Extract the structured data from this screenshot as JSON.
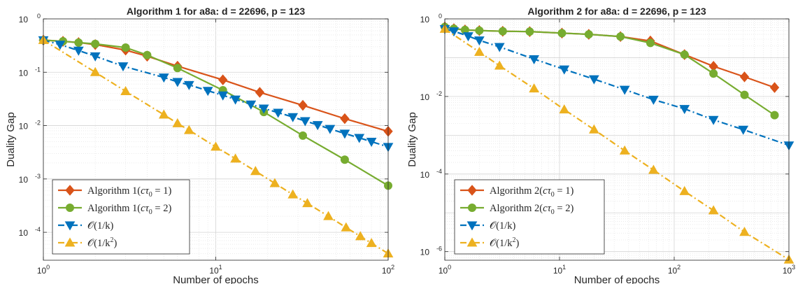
{
  "chart_data": [
    {
      "type": "line",
      "title": "Algorithm 1 for a8a: d = 22696, p = 123",
      "xlabel": "Number of epochs",
      "ylabel": "Duality Gap",
      "xscale": "log",
      "yscale": "log",
      "xlim": [
        1,
        100
      ],
      "ylim": [
        3e-05,
        1
      ],
      "xticks": [
        1,
        10,
        100
      ],
      "xtick_base": [
        "10",
        "10",
        "10"
      ],
      "xtick_exp": [
        "0",
        "1",
        "2"
      ],
      "yticks": [
        0.0001,
        0.001,
        0.01,
        0.1,
        1
      ],
      "ytick_base": [
        "10",
        "10",
        "10",
        "10",
        "10"
      ],
      "ytick_exp": [
        "-4",
        "-3",
        "-2",
        "-1",
        "0"
      ],
      "grid": true,
      "legend_position": "bottom-left",
      "series": [
        {
          "name": "Algorithm 1(cτ0 = 1)",
          "legend_main": "Algorithm 1(",
          "legend_c": "c",
          "legend_tau": "τ",
          "legend_sub": "0",
          "legend_tail": " = 1)",
          "color": "#D95319",
          "marker": "diamond",
          "linestyle": "solid",
          "x": [
            1,
            1.3,
            1.6,
            2,
            3,
            4,
            6,
            11,
            18,
            32,
            56,
            100
          ],
          "y": [
            0.4,
            0.38,
            0.36,
            0.33,
            0.26,
            0.2,
            0.13,
            0.072,
            0.042,
            0.024,
            0.0135,
            0.0078
          ]
        },
        {
          "name": "Algorithm 1(cτ0 = 2)",
          "legend_main": "Algorithm 1(",
          "legend_c": "c",
          "legend_tau": "τ",
          "legend_sub": "0",
          "legend_tail": " = 2)",
          "color": "#77AC30",
          "marker": "circle",
          "linestyle": "solid",
          "x": [
            1,
            1.3,
            1.6,
            2,
            3,
            4,
            6,
            11,
            19,
            32,
            56,
            100
          ],
          "y": [
            0.4,
            0.38,
            0.36,
            0.34,
            0.29,
            0.21,
            0.12,
            0.046,
            0.018,
            0.0065,
            0.0023,
            0.00075
          ]
        },
        {
          "name": "O(1/k)",
          "legend_main": "𝒪(1/k)",
          "color": "#0072BD",
          "marker": "triangle-down",
          "linestyle": "dashdot",
          "x": [
            1,
            1.25,
            1.6,
            2,
            2.9,
            5,
            6,
            7,
            9,
            11,
            13,
            16,
            19,
            23,
            28,
            33,
            39,
            46,
            56,
            68,
            80,
            100
          ],
          "y": [
            0.4,
            0.33,
            0.255,
            0.2,
            0.13,
            0.08,
            0.066,
            0.058,
            0.045,
            0.037,
            0.031,
            0.025,
            0.021,
            0.0175,
            0.0145,
            0.0122,
            0.0103,
            0.0087,
            0.0071,
            0.0059,
            0.005,
            0.004
          ]
        },
        {
          "name": "O(1/k^2)",
          "legend_main": "𝒪(1/k",
          "legend_sup": "2",
          "legend_tail": ")",
          "color": "#EDB120",
          "marker": "triangle-up",
          "linestyle": "dashdot",
          "x": [
            1,
            2,
            3,
            5,
            6,
            7,
            10,
            13,
            17,
            22,
            28,
            34,
            45,
            57,
            69,
            80,
            100
          ],
          "y": [
            0.4,
            0.1,
            0.044,
            0.016,
            0.011,
            0.0082,
            0.004,
            0.0024,
            0.0014,
            0.00083,
            0.00051,
            0.00035,
            0.0002,
            0.000123,
            8.4e-05,
            6.25e-05,
            4e-05
          ]
        }
      ]
    },
    {
      "type": "line",
      "title": "Algorithm 2 for a8a: d = 22696, p = 123",
      "xlabel": "Number of epochs",
      "ylabel": "Duality Gap",
      "xscale": "log",
      "yscale": "log",
      "xlim": [
        1,
        1000
      ],
      "ylim": [
        6e-07,
        1
      ],
      "xticks": [
        1,
        10,
        100,
        1000
      ],
      "xtick_base": [
        "10",
        "10",
        "10",
        "10"
      ],
      "xtick_exp": [
        "0",
        "1",
        "2",
        "3"
      ],
      "yticks": [
        1e-06,
        0.0001,
        0.01,
        1
      ],
      "ytick_base": [
        "10",
        "10",
        "10",
        "10"
      ],
      "ytick_exp": [
        "-6",
        "-4",
        "-2",
        "0"
      ],
      "grid": true,
      "legend_position": "bottom-left",
      "series": [
        {
          "name": "Algorithm 2(cτ0 = 1)",
          "legend_main": "Algorithm 2(",
          "legend_c": "c",
          "legend_tau": "τ",
          "legend_sub": "0",
          "legend_tail": " = 1)",
          "color": "#D95319",
          "marker": "diamond",
          "linestyle": "solid",
          "x": [
            1,
            1.2,
            1.5,
            2,
            3.2,
            5.5,
            10.5,
            18,
            34,
            62,
            123,
            220,
            410,
            750
          ],
          "y": [
            0.62,
            0.56,
            0.52,
            0.5,
            0.48,
            0.47,
            0.43,
            0.4,
            0.35,
            0.27,
            0.12,
            0.06,
            0.032,
            0.017
          ]
        },
        {
          "name": "Algorithm 2(cτ0 = 2)",
          "legend_main": "Algorithm 2(",
          "legend_c": "c",
          "legend_tau": "τ",
          "legend_sub": "0",
          "legend_tail": " = 2)",
          "color": "#77AC30",
          "marker": "circle",
          "linestyle": "solid",
          "x": [
            1,
            1.2,
            1.5,
            2,
            3.2,
            5.5,
            10.5,
            18,
            34,
            62,
            123,
            220,
            410,
            750
          ],
          "y": [
            0.62,
            0.56,
            0.52,
            0.5,
            0.48,
            0.47,
            0.43,
            0.4,
            0.35,
            0.24,
            0.12,
            0.039,
            0.011,
            0.0033
          ]
        },
        {
          "name": "O(1/k)",
          "legend_main": "𝒪(1/k)",
          "color": "#0072BD",
          "marker": "triangle-down",
          "linestyle": "dashdot",
          "x": [
            1,
            1.2,
            1.6,
            2,
            3,
            6,
            11,
            20,
            37,
            66,
            123,
            220,
            400,
            1000
          ],
          "y": [
            0.55,
            0.48,
            0.36,
            0.28,
            0.19,
            0.092,
            0.05,
            0.028,
            0.015,
            0.0083,
            0.0048,
            0.0025,
            0.0014,
            0.00055
          ]
        },
        {
          "name": "O(1/k^2)",
          "legend_main": "𝒪(1/k",
          "legend_sup": "2",
          "legend_tail": ")",
          "color": "#EDB120",
          "marker": "triangle-up",
          "linestyle": "dashdot",
          "x": [
            1,
            2,
            3,
            6,
            11,
            20,
            37,
            66,
            123,
            220,
            410,
            1000
          ],
          "y": [
            0.55,
            0.14,
            0.062,
            0.016,
            0.0046,
            0.0014,
            0.0004,
            0.000127,
            3.6e-05,
            1.15e-05,
            3.2e-06,
            6.2e-07
          ]
        }
      ]
    }
  ]
}
